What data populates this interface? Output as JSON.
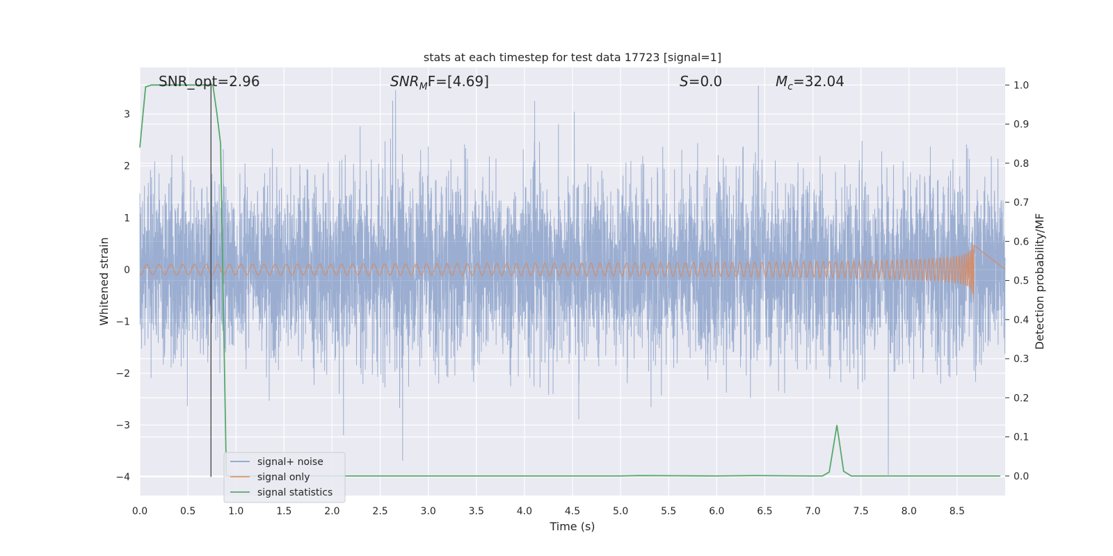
{
  "chart_data": {
    "type": "line",
    "title": "stats at each timestep for test data 17723 [signal=1]",
    "xlabel": "Time (s)",
    "ylabel": "Whitened strain",
    "y2label": "Detection probability/MF",
    "xlim": [
      0.0,
      9.0
    ],
    "ylim": [
      -4.36,
      3.9
    ],
    "y2lim": [
      -0.05,
      1.045
    ],
    "xticks": [
      "0.0",
      "0.5",
      "1.0",
      "1.5",
      "2.0",
      "2.5",
      "3.0",
      "3.5",
      "4.0",
      "4.5",
      "5.0",
      "5.5",
      "6.0",
      "6.5",
      "7.0",
      "7.5",
      "8.0",
      "8.5"
    ],
    "yticks": [
      "3",
      "2",
      "1",
      "0",
      "−1",
      "−2",
      "−3",
      "−4"
    ],
    "y2ticks": [
      "1.0",
      "0.9",
      "0.8",
      "0.7",
      "0.6",
      "0.5",
      "0.4",
      "0.3",
      "0.2",
      "0.1",
      "0.0"
    ],
    "grid": true,
    "legend_position": "lower-left",
    "colors": {
      "noise": "#4c72b0",
      "signal": "#dd8452",
      "stats": "#55a868",
      "marker": "#333333",
      "background": "#eaeaf2"
    },
    "annotations": {
      "snr_opt": "SNR_opt=2.96",
      "snr_mf_main": "SNR",
      "snr_mf_sub": "M",
      "snr_mf_rest": "F=[4.69]",
      "s_main": "S",
      "s_rest": "=0.0",
      "mc_main": "M",
      "mc_sub": "c",
      "mc_rest": "=32.04"
    },
    "marker_time": 0.74,
    "series": [
      {
        "name": "signal+ noise",
        "axis": "left",
        "noise_sigma": 0.85,
        "x_range": [
          0.0,
          9.0
        ]
      },
      {
        "name": "signal only",
        "axis": "left",
        "chirp_end": 8.68,
        "peak_amplitude": 0.55
      },
      {
        "name": "signal statistics",
        "axis": "right",
        "x": [
          0.0,
          0.06,
          0.12,
          0.2,
          0.4,
          0.6,
          0.72,
          0.76,
          0.8,
          0.84,
          0.9,
          1.0,
          2.0,
          3.0,
          4.0,
          5.0,
          5.2,
          6.0,
          6.4,
          7.0,
          7.1,
          7.17,
          7.25,
          7.32,
          7.4,
          7.5,
          8.0,
          8.5,
          8.95
        ],
        "values": [
          0.84,
          0.995,
          1.0,
          1.0,
          1.0,
          1.0,
          1.0,
          1.0,
          0.93,
          0.85,
          0.0,
          0.0,
          0.0,
          0.0,
          0.0,
          0.0,
          0.001,
          0.0,
          0.001,
          0.0,
          0.0,
          0.01,
          0.13,
          0.012,
          0.0,
          0.0,
          0.0,
          0.0,
          0.0
        ]
      }
    ]
  }
}
